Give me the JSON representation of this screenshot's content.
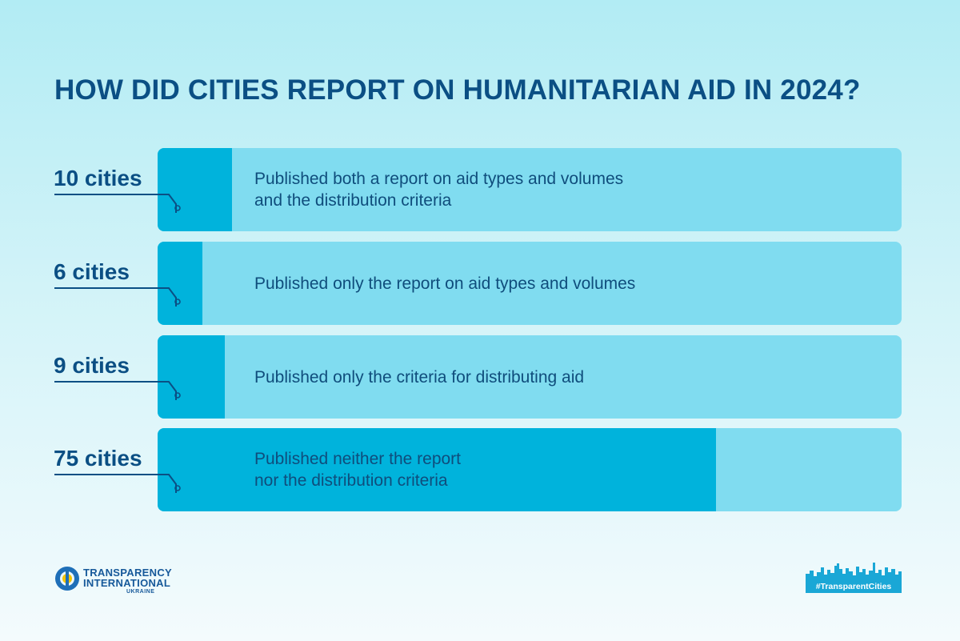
{
  "title": "HOW DID CITIES REPORT ON HUMANITARIAN AID IN 2024?",
  "chart_data": {
    "type": "bar",
    "orientation": "horizontal",
    "total": 100,
    "categories": [
      "Published both a report on aid types and volumes\nand the distribution criteria",
      "Published only the report on aid types and volumes",
      "Published only the criteria for distributing aid",
      "Published neither the report\nnor the distribution criteria"
    ],
    "values": [
      10,
      6,
      9,
      75
    ],
    "value_labels": [
      "10 cities",
      "6 cities",
      "9 cities",
      "75 cities"
    ],
    "colors": {
      "fill": "#00b3dc",
      "track": "#80dcf0",
      "label": "#0b4f84",
      "connector": "#0b4f84"
    }
  },
  "logos": {
    "organization": {
      "line1": "TRANSPARENCY",
      "line2": "INTERNATIONAL",
      "line3": "UKRAINE"
    },
    "hashtag": "#TransparentCities"
  }
}
